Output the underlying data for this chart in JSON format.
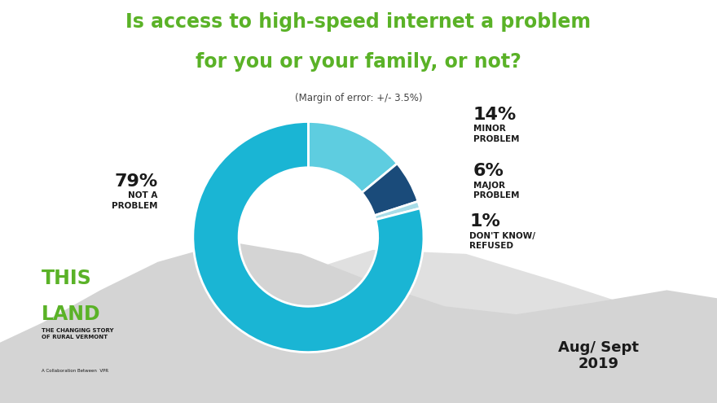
{
  "title_line1": "Is access to high-speed internet a problem",
  "title_line2": "for you or your family, or not?",
  "subtitle": "(Margin of error: +/- 3.5%)",
  "slices_ordered": [
    14,
    6,
    1,
    79
  ],
  "colors_ordered": [
    "#5ecde0",
    "#1a4b7a",
    "#a8dde8",
    "#1ab5d4"
  ],
  "background_color": "#ffffff",
  "hill_color": "#d4d4d4",
  "hill_color2": "#e0e0e0",
  "title_color": "#5ab227",
  "subtitle_color": "#444444",
  "label_color": "#1a1a1a",
  "pct_color": "#1a1a1a",
  "brand_green": "#5ab227",
  "brand_dark": "#1a1a1a",
  "ordered_pcts": [
    "14%",
    "6%",
    "1%",
    "79%"
  ],
  "ordered_labels": [
    "MINOR\nPROBLEM",
    "MAJOR\nPROBLEM",
    "DON'T KNOW/\nREFUSED",
    "NOT A\nPROBLEM"
  ],
  "label_ha": [
    "left",
    "left",
    "left",
    "right"
  ],
  "label_fx": [
    0.66,
    0.66,
    0.655,
    0.22
  ],
  "label_fy": [
    0.695,
    0.555,
    0.43,
    0.53
  ],
  "pct_fontsize": 16,
  "label_fontsize": 7.5,
  "aug_sept": "Aug/ Sept\n2019",
  "this_text": "THIS",
  "land_text": "LAND",
  "sub_text": "THE CHANGING STORY\nOF RURAL VERMONT",
  "collab_text": "A Collaboration Between  VPR"
}
